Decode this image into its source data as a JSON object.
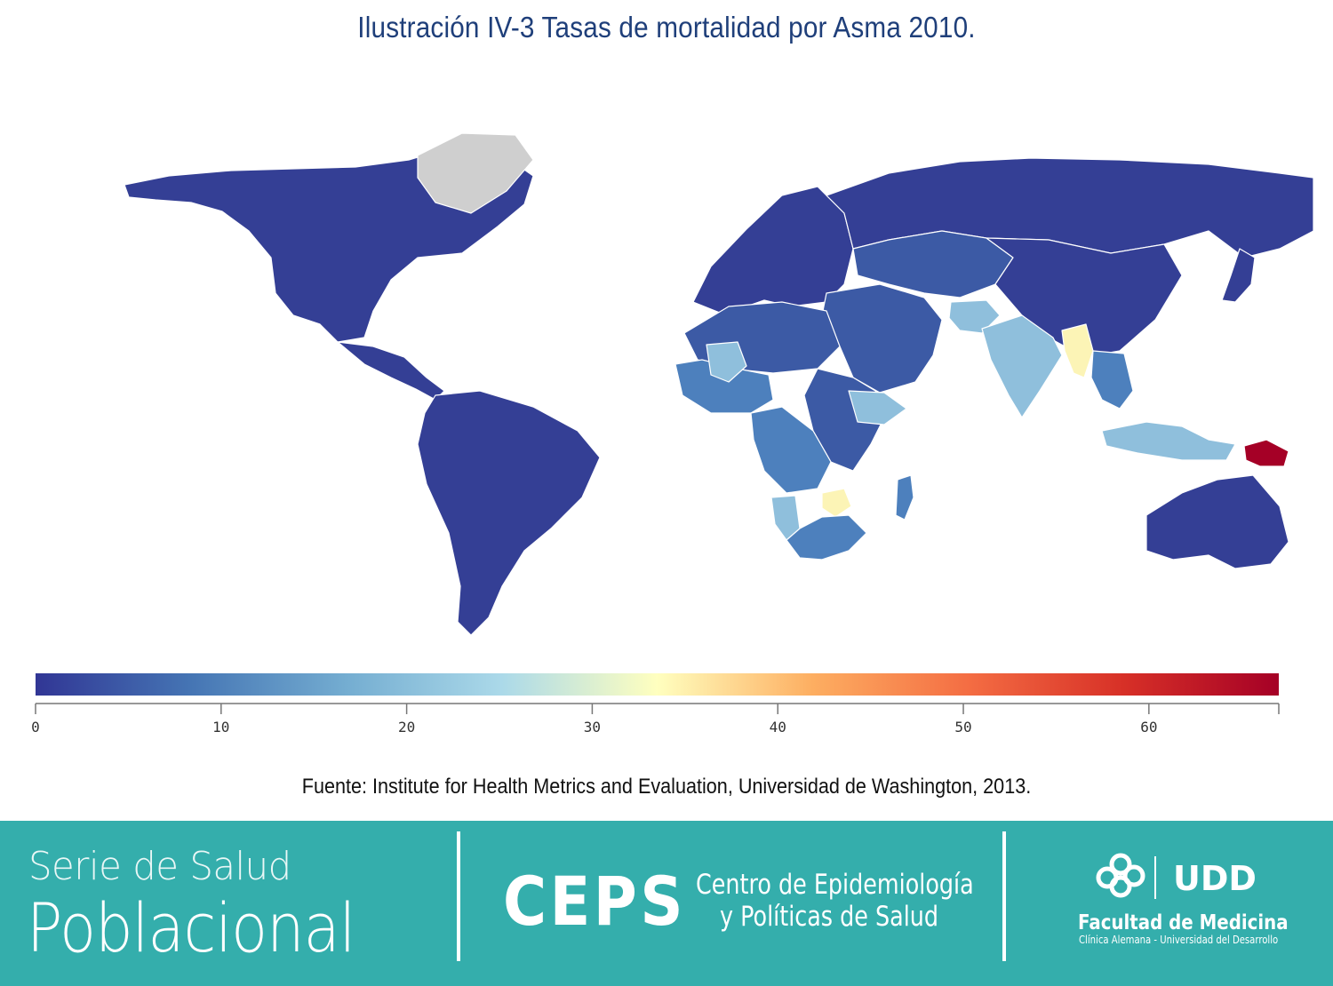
{
  "header": {
    "title": "Ilustración IV-3 Tasas de mortalidad por Asma 2010."
  },
  "map": {
    "type": "choropleth",
    "measure": "Tasas de mortalidad por Asma",
    "year": 2010,
    "colors": {
      "very_low": "#343f95",
      "low": "#3c5aa5",
      "low_mid": "#4d80bd",
      "mid": "#8fbfdc",
      "mid_high": "#fcf4b6",
      "highest": "#a50026",
      "no_data": "#cfcfcf",
      "border": "#ffffff"
    },
    "regions": [
      {
        "name": "North America",
        "band": "very_low"
      },
      {
        "name": "Greenland",
        "band": "no_data"
      },
      {
        "name": "Central America",
        "band": "very_low"
      },
      {
        "name": "South America",
        "band": "very_low"
      },
      {
        "name": "Europe",
        "band": "very_low"
      },
      {
        "name": "Russia",
        "band": "very_low"
      },
      {
        "name": "Central Asia",
        "band": "low"
      },
      {
        "name": "China",
        "band": "very_low"
      },
      {
        "name": "Japan",
        "band": "very_low"
      },
      {
        "name": "Middle East",
        "band": "low"
      },
      {
        "name": "Afghanistan",
        "band": "mid"
      },
      {
        "name": "India",
        "band": "mid"
      },
      {
        "name": "Myanmar",
        "band": "mid_high"
      },
      {
        "name": "Southeast Asia",
        "band": "low_mid"
      },
      {
        "name": "Indonesia",
        "band": "mid"
      },
      {
        "name": "Papua New Guinea",
        "band": "highest"
      },
      {
        "name": "Australia",
        "band": "very_low"
      },
      {
        "name": "North Africa",
        "band": "low"
      },
      {
        "name": "West Africa",
        "band": "low_mid"
      },
      {
        "name": "Mali",
        "band": "mid"
      },
      {
        "name": "East Africa",
        "band": "low"
      },
      {
        "name": "Ethiopia",
        "band": "mid"
      },
      {
        "name": "Central Africa",
        "band": "low_mid"
      },
      {
        "name": "Namibia",
        "band": "mid"
      },
      {
        "name": "Zimbabwe",
        "band": "mid_high"
      },
      {
        "name": "Southern Africa",
        "band": "low_mid"
      },
      {
        "name": "Madagascar",
        "band": "low_mid"
      }
    ]
  },
  "colorscale": {
    "min": 0,
    "max": 67,
    "ticks": [
      0,
      10,
      20,
      30,
      40,
      50,
      60
    ],
    "tick_labels": [
      "0",
      "10",
      "20",
      "30",
      "40",
      "50",
      "60"
    ],
    "stops": [
      "#313695",
      "#4575b4",
      "#74add1",
      "#abd9e9",
      "#ffffbf",
      "#fdae61",
      "#f46d43",
      "#d73027",
      "#a50026"
    ]
  },
  "source": "Fuente: Institute for Health Metrics and Evaluation, Universidad de Washington, 2013.",
  "footer": {
    "serie_line1": "Serie de Salud",
    "serie_line2": "Poblacional",
    "ceps_acronym": "CEPS",
    "ceps_line1": "Centro de Epidemiología",
    "ceps_line2": "y Políticas de Salud",
    "udd_mark": "UDD",
    "faculty": "Facultad de Medicina",
    "faculty_sub": "Clínica Alemana - Universidad del Desarrollo"
  }
}
